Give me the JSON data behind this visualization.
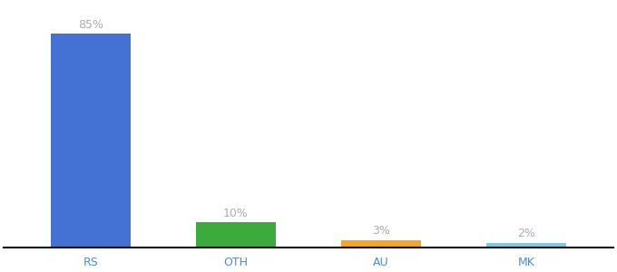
{
  "categories": [
    "RS",
    "OTH",
    "AU",
    "MK"
  ],
  "values": [
    85,
    10,
    3,
    2
  ],
  "bar_colors": [
    "#4472d4",
    "#3daa3d",
    "#f5a623",
    "#7ec8e3"
  ],
  "value_labels": [
    "85%",
    "10%",
    "3%",
    "2%"
  ],
  "background_color": "#ffffff",
  "label_color": "#aaaaaa",
  "label_fontsize": 9,
  "tick_fontsize": 9,
  "tick_color": "#5588cc",
  "ylim": [
    0,
    97
  ],
  "bar_width": 0.55
}
